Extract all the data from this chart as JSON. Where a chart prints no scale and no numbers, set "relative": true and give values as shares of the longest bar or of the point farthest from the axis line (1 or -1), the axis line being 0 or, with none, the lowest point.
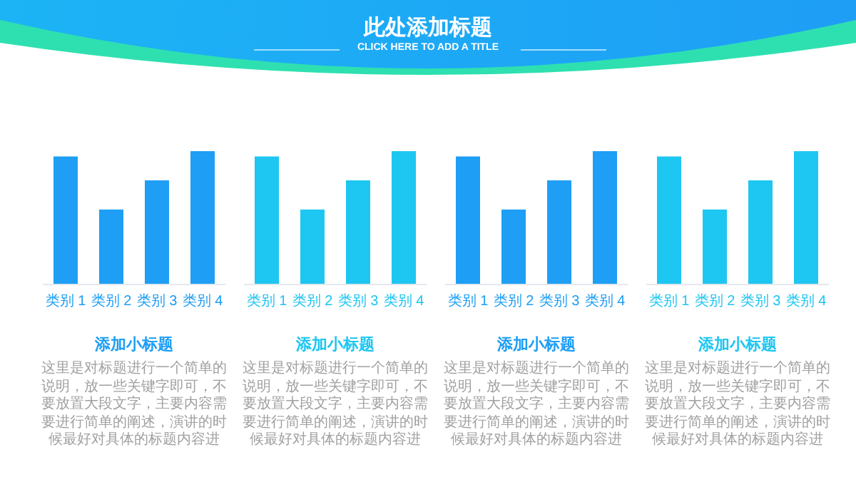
{
  "chart_data": [
    {
      "type": "other",
      "title": "此处添加标题",
      "subtitle": "CLICK HERE TO ADD A TITLE"
    },
    {
      "type": "bar",
      "relative": true,
      "title": "添加小标题",
      "categories": [
        "类别 1",
        "类别 2",
        "类别 3",
        "类别 4"
      ],
      "values": [
        0.96,
        0.56,
        0.78,
        1
      ],
      "color": "#1e9ef5",
      "annotations": [
        "这里是对标题进行一个简单的说明，放一些关键字即可，不要放置大段文字，主要内容需要进行简单的阐述，演讲的时候最好对具体的标题内容进"
      ]
    },
    {
      "type": "bar",
      "relative": true,
      "title": "添加小标题",
      "categories": [
        "类别 1",
        "类别 2",
        "类别 3",
        "类别 4"
      ],
      "values": [
        0.96,
        0.56,
        0.78,
        1
      ],
      "color": "#1ec6f2",
      "annotations": [
        "这里是对标题进行一个简单的说明，放一些关键字即可，不要放置大段文字，主要内容需要进行简单的阐述，演讲的时候最好对具体的标题内容进"
      ]
    },
    {
      "type": "bar",
      "relative": true,
      "title": "添加小标题",
      "categories": [
        "类别 1",
        "类别 2",
        "类别 3",
        "类别 4"
      ],
      "values": [
        0.96,
        0.56,
        0.78,
        1
      ],
      "color": "#1e9ef5",
      "annotations": [
        "这里是对标题进行一个简单的说明，放一些关键字即可，不要放置大段文字，主要内容需要进行简单的阐述，演讲的时候最好对具体的标题内容进"
      ]
    },
    {
      "type": "bar",
      "relative": true,
      "title": "添加小标题",
      "categories": [
        "类别 1",
        "类别 2",
        "类别 3",
        "类别 4"
      ],
      "values": [
        0.96,
        0.56,
        0.78,
        1
      ],
      "color": "#1ec6f2",
      "annotations": [
        "这里是对标题进行一个简单的说明，放一些关键字即可，不要放置大段文字，主要内容需要进行简单的阐述，演讲的时候最好对具体的标题内容进"
      ]
    }
  ]
}
